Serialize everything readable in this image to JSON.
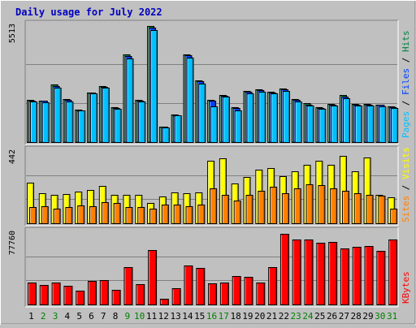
{
  "title": "Daily usage for July 2022",
  "colors": {
    "background": "#c0c0c0",
    "panel_bg": "#c0c0c0",
    "title": "#0000c0",
    "hits": "#008040",
    "files": "#0040ff",
    "pages": "#00c0ff",
    "visits": "#ffff00",
    "sites": "#ff8000",
    "kbytes": "#ff0000",
    "weekend_label": "#008000",
    "weekday_label": "#000000"
  },
  "chart_data": [
    {
      "type": "bar",
      "panel": "hits-files-pages",
      "ymax_label": "5513",
      "ylim": [
        0,
        5513
      ],
      "legend": [
        "Pages",
        "Files",
        "Hits"
      ],
      "categories": [
        "1",
        "2",
        "3",
        "4",
        "5",
        "6",
        "7",
        "8",
        "9",
        "10",
        "11",
        "12",
        "13",
        "14",
        "15",
        "16",
        "17",
        "18",
        "19",
        "20",
        "21",
        "22",
        "23",
        "24",
        "25",
        "26",
        "27",
        "28",
        "29",
        "30",
        "31"
      ],
      "series": [
        {
          "name": "Hits",
          "values": [
            1980,
            1960,
            2700,
            2020,
            1540,
            2340,
            2640,
            1630,
            4120,
            1990,
            5480,
            740,
            1310,
            4140,
            2910,
            1980,
            2230,
            1640,
            2400,
            2500,
            2390,
            2540,
            2020,
            1820,
            1660,
            1800,
            2210,
            1800,
            1790,
            1780,
            1670
          ]
        },
        {
          "name": "Files",
          "values": [
            1960,
            1940,
            2650,
            1980,
            1510,
            2320,
            2600,
            1600,
            4050,
            1950,
            5380,
            720,
            1280,
            4080,
            2860,
            1950,
            2200,
            1610,
            2360,
            2450,
            2350,
            2500,
            1980,
            1780,
            1620,
            1770,
            2150,
            1770,
            1760,
            1750,
            1640
          ]
        },
        {
          "name": "Pages",
          "values": [
            1900,
            1890,
            2550,
            1920,
            1480,
            2280,
            2550,
            1560,
            3960,
            1910,
            5300,
            700,
            1250,
            3990,
            2760,
            1700,
            2150,
            1480,
            2300,
            2380,
            2280,
            2430,
            1920,
            1740,
            1560,
            1740,
            2070,
            1740,
            1740,
            1690,
            1610
          ]
        }
      ]
    },
    {
      "type": "bar",
      "panel": "visits-sites",
      "ymax_label": "442",
      "ylim": [
        0,
        442
      ],
      "legend": [
        "Sites",
        "Visits"
      ],
      "categories": [
        "1",
        "2",
        "3",
        "4",
        "5",
        "6",
        "7",
        "8",
        "9",
        "10",
        "11",
        "12",
        "13",
        "14",
        "15",
        "16",
        "17",
        "18",
        "19",
        "20",
        "21",
        "22",
        "23",
        "24",
        "25",
        "26",
        "27",
        "28",
        "29",
        "30",
        "31"
      ],
      "series": [
        {
          "name": "Visits",
          "values": [
            250,
            185,
            175,
            180,
            195,
            205,
            230,
            175,
            175,
            175,
            125,
            165,
            190,
            185,
            190,
            380,
            395,
            245,
            285,
            330,
            340,
            290,
            320,
            360,
            380,
            360,
            410,
            320,
            400,
            175,
            160
          ]
        },
        {
          "name": "Sites",
          "values": [
            100,
            105,
            90,
            100,
            110,
            105,
            130,
            125,
            100,
            100,
            90,
            115,
            115,
            105,
            115,
            215,
            175,
            140,
            175,
            200,
            225,
            185,
            215,
            240,
            235,
            215,
            200,
            185,
            175,
            170,
            90
          ]
        }
      ]
    },
    {
      "type": "bar",
      "panel": "kbytes",
      "ymax_label": "77760",
      "ylim": [
        0,
        77760
      ],
      "legend": [
        "KBytes"
      ],
      "categories": [
        "1",
        "2",
        "3",
        "4",
        "5",
        "6",
        "7",
        "8",
        "9",
        "10",
        "11",
        "12",
        "13",
        "14",
        "15",
        "16",
        "17",
        "18",
        "19",
        "20",
        "21",
        "22",
        "23",
        "24",
        "25",
        "26",
        "27",
        "28",
        "29",
        "30",
        "31"
      ],
      "series": [
        {
          "name": "KBytes",
          "values": [
            24000,
            21000,
            24000,
            20500,
            15000,
            25000,
            26500,
            15800,
            40000,
            21500,
            58200,
            6000,
            17200,
            42000,
            39500,
            22800,
            24000,
            31000,
            30000,
            23500,
            40000,
            76000,
            70000,
            70000,
            66500,
            67000,
            60000,
            62000,
            62500,
            58000,
            70000
          ]
        }
      ]
    }
  ],
  "x_labels": [
    "1",
    "2",
    "3",
    "4",
    "5",
    "6",
    "7",
    "8",
    "9",
    "10",
    "11",
    "12",
    "13",
    "14",
    "15",
    "16",
    "17",
    "18",
    "19",
    "20",
    "21",
    "22",
    "23",
    "24",
    "25",
    "26",
    "27",
    "28",
    "29",
    "30",
    "31"
  ],
  "weekend_days": [
    "2",
    "3",
    "9",
    "10",
    "16",
    "17",
    "23",
    "24",
    "30",
    "31"
  ]
}
